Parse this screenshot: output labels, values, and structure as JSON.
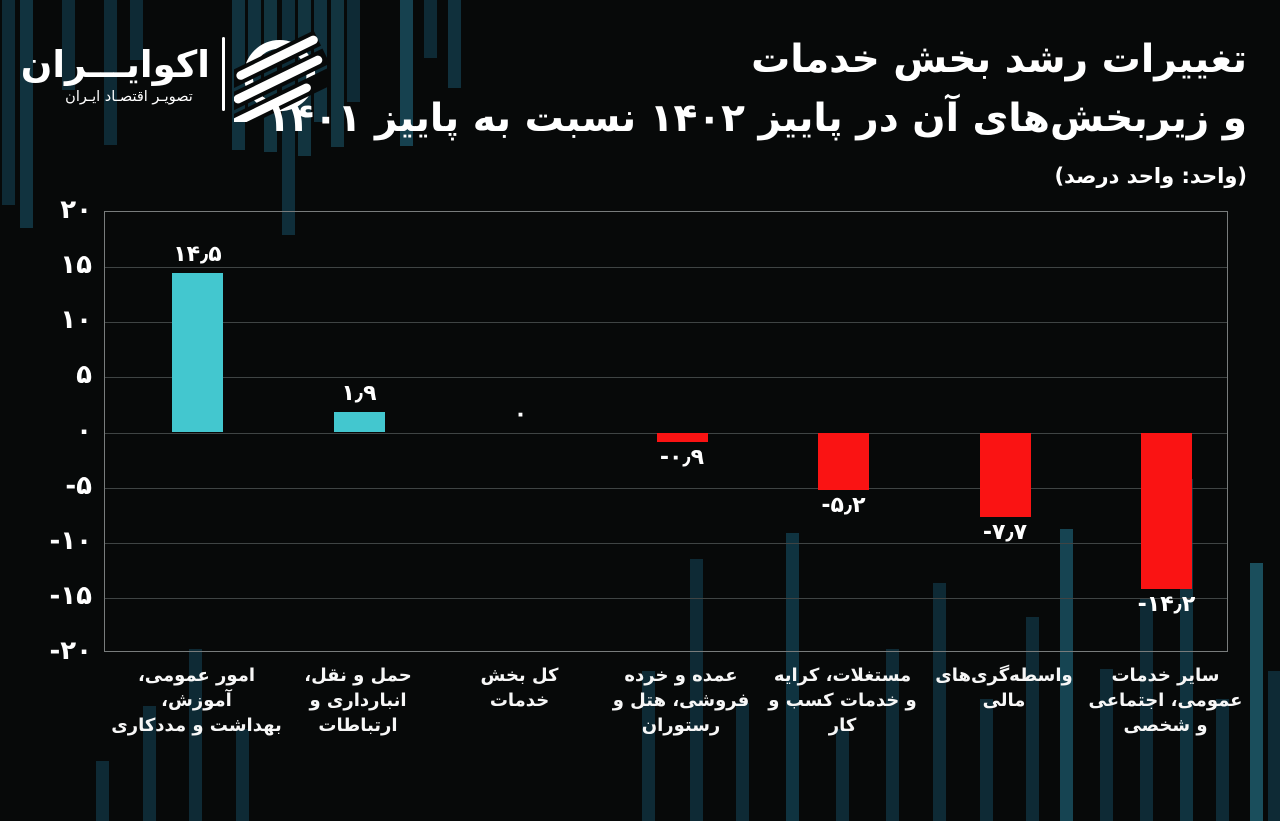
{
  "brand": {
    "name": "اکوایـــران",
    "tagline": "تصویـر اقتصـاد ایـران"
  },
  "header": {
    "title_line1": "تغییرات رشد بخش خدمات",
    "title_line2": "و زیربخش‌های آن در پاییز ۱۴۰۲ نسبت به پاییز ۱۴۰۱",
    "unit_note": "(واحد: واحد درصد)"
  },
  "chart_data": {
    "type": "bar",
    "title": "تغییرات رشد بخش خدمات و زیربخش‌های آن در پاییز ۱۴۰۲ نسبت به پاییز ۱۴۰۱",
    "unit_note": "(واحد: واحد درصد)",
    "ylim": [
      -20,
      20
    ],
    "ytick_step": 5,
    "yticks_display": [
      "۲۰",
      "۱۵",
      "۱۰",
      "۵",
      "۰",
      "-۵",
      "-۱۰",
      "-۱۵",
      "-۲۰"
    ],
    "grid": true,
    "legend": false,
    "colors": {
      "positive": "#43c7cf",
      "negative": "#fa1313",
      "background": "#070909",
      "gridline": "#3f4444",
      "text": "#ffffff"
    },
    "categories": [
      "امور عمومی، آموزش، بهداشت و مددکاری",
      "حمل و نقل، انبارداری و ارتباطات",
      "کل بخش خدمات",
      "عمده و خرده فروشی، هتل و رستوران",
      "مستغلات، کرایه و خدمات کسب و کار",
      "واسطه‌گری‌های مالی",
      "سایر خدمات عمومی، اجتماعی و شخصی"
    ],
    "category_label_lines": [
      [
        "امور عمومی، آموزش،",
        "بهداشت و مددکاری"
      ],
      [
        "حمل و نقل،",
        "انبارداری و",
        "ارتباطات"
      ],
      [
        "کل بخش",
        "خدمات"
      ],
      [
        "عمده و خرده",
        "فروشی، هتل و",
        "رستوران"
      ],
      [
        "مستغلات، کرایه",
        "و خدمات کسب و کار"
      ],
      [
        "واسطه‌گری‌های",
        "مالی"
      ],
      [
        "سایر خدمات",
        "عمومی، اجتماعی",
        "و شخصی"
      ]
    ],
    "values": [
      14.5,
      1.9,
      0,
      -0.9,
      -5.2,
      -7.7,
      -14.2
    ],
    "display_values": [
      "۱۴٫۵",
      "۱٫۹",
      "۰",
      "-۰٫۹",
      "-۵٫۲",
      "-۷٫۷",
      "-۱۴٫۲"
    ]
  }
}
